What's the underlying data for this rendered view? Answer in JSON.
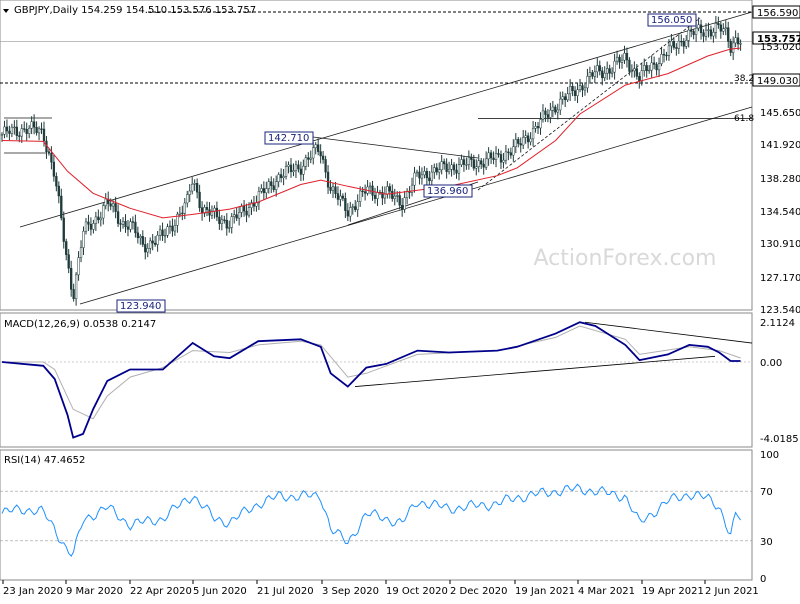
{
  "header": {
    "price_title": "GBPJPY,Daily  154.259 154.510 153.576 153.757",
    "macd_title": "MACD(12,26,9) 0.0538 0.2147",
    "rsi_title": "RSI(14) 47.4652",
    "watermark": "ActionForex.com"
  },
  "colors": {
    "candle": "#1f3a3a",
    "ma": "#e0202a",
    "channel": "#1a1a1a",
    "macd_line": "#00008b",
    "macd_signal": "#b0b0b0",
    "rsi": "#1e90ff",
    "label_box": "#1a237e",
    "watermark": "#d9d9d9"
  },
  "chart_data": [
    {
      "type": "candlestick",
      "name": "price",
      "ylim": [
        123.58,
        157.9
      ],
      "y_ticks": [
        "156.590",
        "153.757",
        "153.020",
        "149.030",
        "145.650",
        "141.920",
        "138.280",
        "134.540",
        "130.910",
        "127.170",
        "123.540"
      ],
      "x_ticks": [
        "23 Jan 2020",
        "9 Mar 2020",
        "22 Apr 2020",
        "5 Jun 2020",
        "21 Jul 2020",
        "3 Sep 2020",
        "19 Oct 2020",
        "2 Dec 2020",
        "19 Jan 2021",
        "4 Mar 2021",
        "19 Apr 2021",
        "2 Jun 2021"
      ],
      "current_price": "153.757",
      "resistance": "156.590",
      "support": "149.030",
      "annotations": [
        {
          "text": "156.050"
        },
        {
          "text": "142.710"
        },
        {
          "text": "136.960"
        },
        {
          "text": "123.940"
        },
        {
          "text": "38.2"
        },
        {
          "text": "61.8"
        }
      ],
      "close_path": [
        [
          "23 Jan 2020",
          143.2
        ],
        [
          "9 Feb 2020",
          143.9
        ],
        [
          "21 Feb 2020",
          143.4
        ],
        [
          "29 Feb 2020",
          138.5
        ],
        [
          "9 Mar 2020",
          128.5
        ],
        [
          "13 Mar 2020",
          125.0
        ],
        [
          "20 Mar 2020",
          132.0
        ],
        [
          "27 Mar 2020",
          133.2
        ],
        [
          "6 Apr 2020",
          135.5
        ],
        [
          "16 Apr 2020",
          133.2
        ],
        [
          "22 Apr 2020",
          133.0
        ],
        [
          "1 May 2020",
          130.5
        ],
        [
          "15 May 2020",
          131.6
        ],
        [
          "1 Jun 2020",
          135.3
        ],
        [
          "5 Jun 2020",
          138.2
        ],
        [
          "12 Jun 2020",
          134.6
        ],
        [
          "1 Jul 2020",
          133.1
        ],
        [
          "21 Jul 2020",
          136.0
        ],
        [
          "5 Aug 2020",
          138.5
        ],
        [
          "20 Aug 2020",
          139.6
        ],
        [
          "1 Sep 2020",
          141.5
        ],
        [
          "3 Sep 2020",
          141.1
        ],
        [
          "10 Sep 2020",
          137.0
        ],
        [
          "22 Sep 2020",
          134.5
        ],
        [
          "5 Oct 2020",
          136.8
        ],
        [
          "19 Oct 2020",
          136.5
        ],
        [
          "30 Oct 2020",
          135.5
        ],
        [
          "10 Nov 2020",
          138.5
        ],
        [
          "20 Nov 2020",
          138.9
        ],
        [
          "2 Dec 2020",
          139.5
        ],
        [
          "15 Dec 2020",
          139.8
        ],
        [
          "5 Jan 2021",
          140.5
        ],
        [
          "19 Jan 2021",
          141.8
        ],
        [
          "1 Feb 2021",
          144.0
        ],
        [
          "15 Feb 2021",
          146.5
        ],
        [
          "4 Mar 2021",
          148.6
        ],
        [
          "15 Mar 2021",
          150.2
        ],
        [
          "25 Mar 2021",
          150.6
        ],
        [
          "5 Apr 2021",
          151.9
        ],
        [
          "15 Apr 2021",
          149.6
        ],
        [
          "19 Apr 2021",
          150.3
        ],
        [
          "5 May 2021",
          152.6
        ],
        [
          "20 May 2021",
          154.6
        ],
        [
          "2 Jun 2021",
          155.1
        ],
        [
          "10 Jun 2021",
          155.2
        ],
        [
          "15 Jun 2021",
          154.6
        ],
        [
          "18 Jun 2021",
          153.3
        ],
        [
          "22 Jun 2021",
          154.2
        ],
        [
          "25 Jun 2021",
          153.8
        ]
      ],
      "ma_path": [
        [
          "23 Jan 2020",
          142.5
        ],
        [
          "21 Feb 2020",
          142.4
        ],
        [
          "9 Mar 2020",
          139.0
        ],
        [
          "27 Mar 2020",
          136.5
        ],
        [
          "22 Apr 2020",
          134.8
        ],
        [
          "15 May 2020",
          133.7
        ],
        [
          "5 Jun 2020",
          134.1
        ],
        [
          "1 Jul 2020",
          134.7
        ],
        [
          "21 Jul 2020",
          135.5
        ],
        [
          "20 Aug 2020",
          137.5
        ],
        [
          "3 Sep 2020",
          138.0
        ],
        [
          "22 Sep 2020",
          137.3
        ],
        [
          "19 Oct 2020",
          136.4
        ],
        [
          "2 Dec 2020",
          137.3
        ],
        [
          "5 Jan 2021",
          138.5
        ],
        [
          "19 Jan 2021",
          139.4
        ],
        [
          "15 Feb 2021",
          142.5
        ],
        [
          "4 Mar 2021",
          145.5
        ],
        [
          "5 Apr 2021",
          148.8
        ],
        [
          "5 May 2021",
          150.1
        ],
        [
          "2 Jun 2021",
          152.1
        ],
        [
          "18 Jun 2021",
          152.9
        ],
        [
          "25 Jun 2021",
          153.0
        ]
      ]
    },
    {
      "type": "line",
      "name": "MACD(12,26,9)",
      "ylim": [
        -4.0185,
        2.1124
      ],
      "y_ticks": [
        "2.1124",
        "0.00",
        "-4.0185"
      ],
      "series": [
        {
          "name": "macd",
          "points": [
            [
              "23 Jan 2020",
              0.0
            ],
            [
              "21 Feb 2020",
              -0.2
            ],
            [
              "29 Feb 2020",
              -0.9
            ],
            [
              "9 Mar 2020",
              -2.8
            ],
            [
              "13 Mar 2020",
              -4.0
            ],
            [
              "20 Mar 2020",
              -3.8
            ],
            [
              "27 Mar 2020",
              -2.5
            ],
            [
              "6 Apr 2020",
              -1.0
            ],
            [
              "22 Apr 2020",
              -0.4
            ],
            [
              "15 May 2020",
              -0.4
            ],
            [
              "5 Jun 2020",
              1.0
            ],
            [
              "20 Jun 2020",
              0.3
            ],
            [
              "1 Jul 2020",
              0.2
            ],
            [
              "21 Jul 2020",
              1.1
            ],
            [
              "20 Aug 2020",
              1.2
            ],
            [
              "3 Sep 2020",
              0.8
            ],
            [
              "10 Sep 2020",
              -0.6
            ],
            [
              "22 Sep 2020",
              -1.3
            ],
            [
              "5 Oct 2020",
              -0.3
            ],
            [
              "19 Oct 2020",
              -0.1
            ],
            [
              "10 Nov 2020",
              0.6
            ],
            [
              "2 Dec 2020",
              0.5
            ],
            [
              "5 Jan 2021",
              0.6
            ],
            [
              "19 Jan 2021",
              0.8
            ],
            [
              "15 Feb 2021",
              1.5
            ],
            [
              "4 Mar 2021",
              2.1
            ],
            [
              "15 Mar 2021",
              1.9
            ],
            [
              "5 Apr 2021",
              0.9
            ],
            [
              "15 Apr 2021",
              0.1
            ],
            [
              "5 May 2021",
              0.4
            ],
            [
              "20 May 2021",
              0.9
            ],
            [
              "2 Jun 2021",
              0.8
            ],
            [
              "10 Jun 2021",
              0.5
            ],
            [
              "18 Jun 2021",
              0.05
            ],
            [
              "25 Jun 2021",
              0.05
            ]
          ]
        },
        {
          "name": "signal",
          "points": [
            [
              "23 Jan 2020",
              0.0
            ],
            [
              "21 Feb 2020",
              0.0
            ],
            [
              "29 Feb 2020",
              -0.4
            ],
            [
              "13 Mar 2020",
              -2.5
            ],
            [
              "27 Mar 2020",
              -3.0
            ],
            [
              "6 Apr 2020",
              -1.8
            ],
            [
              "22 Apr 2020",
              -0.8
            ],
            [
              "15 May 2020",
              -0.3
            ],
            [
              "5 Jun 2020",
              0.6
            ],
            [
              "1 Jul 2020",
              0.5
            ],
            [
              "21 Jul 2020",
              0.9
            ],
            [
              "20 Aug 2020",
              1.1
            ],
            [
              "3 Sep 2020",
              0.9
            ],
            [
              "22 Sep 2020",
              -0.8
            ],
            [
              "5 Oct 2020",
              -0.6
            ],
            [
              "10 Nov 2020",
              0.4
            ],
            [
              "5 Jan 2021",
              0.6
            ],
            [
              "15 Feb 2021",
              1.3
            ],
            [
              "4 Mar 2021",
              1.9
            ],
            [
              "5 Apr 2021",
              1.2
            ],
            [
              "15 Apr 2021",
              0.4
            ],
            [
              "20 May 2021",
              0.8
            ],
            [
              "10 Jun 2021",
              0.6
            ],
            [
              "25 Jun 2021",
              0.21
            ]
          ]
        }
      ]
    },
    {
      "type": "line",
      "name": "RSI(14)",
      "ylim": [
        0,
        100
      ],
      "y_ticks": [
        "100",
        "70",
        "30",
        "0"
      ],
      "reference_lines": [
        70,
        30
      ],
      "series": [
        {
          "name": "rsi",
          "points": [
            [
              "23 Jan 2020",
              52
            ],
            [
              "5 Feb 2020",
              56
            ],
            [
              "21 Feb 2020",
              53
            ],
            [
              "29 Feb 2020",
              40
            ],
            [
              "9 Mar 2020",
              22
            ],
            [
              "13 Mar 2020",
              18
            ],
            [
              "20 Mar 2020",
              47
            ],
            [
              "6 Apr 2020",
              57
            ],
            [
              "22 Apr 2020",
              43
            ],
            [
              "15 May 2020",
              48
            ],
            [
              "5 Jun 2020",
              67
            ],
            [
              "20 Jun 2020",
              48
            ],
            [
              "1 Jul 2020",
              45
            ],
            [
              "21 Jul 2020",
              60
            ],
            [
              "5 Aug 2020",
              66
            ],
            [
              "3 Sep 2020",
              66
            ],
            [
              "10 Sep 2020",
              40
            ],
            [
              "22 Sep 2020",
              28
            ],
            [
              "5 Oct 2020",
              52
            ],
            [
              "19 Oct 2020",
              48
            ],
            [
              "30 Oct 2020",
              44
            ],
            [
              "10 Nov 2020",
              62
            ],
            [
              "2 Dec 2020",
              56
            ],
            [
              "5 Jan 2021",
              60
            ],
            [
              "19 Jan 2021",
              65
            ],
            [
              "15 Feb 2021",
              70
            ],
            [
              "4 Mar 2021",
              72
            ],
            [
              "25 Mar 2021",
              68
            ],
            [
              "5 Apr 2021",
              66
            ],
            [
              "15 Apr 2021",
              44
            ],
            [
              "19 Apr 2021",
              48
            ],
            [
              "5 May 2021",
              62
            ],
            [
              "20 May 2021",
              68
            ],
            [
              "2 Jun 2021",
              64
            ],
            [
              "10 Jun 2021",
              58
            ],
            [
              "18 Jun 2021",
              34
            ],
            [
              "22 Jun 2021",
              52
            ],
            [
              "25 Jun 2021",
              47.4652
            ]
          ]
        }
      ]
    }
  ]
}
